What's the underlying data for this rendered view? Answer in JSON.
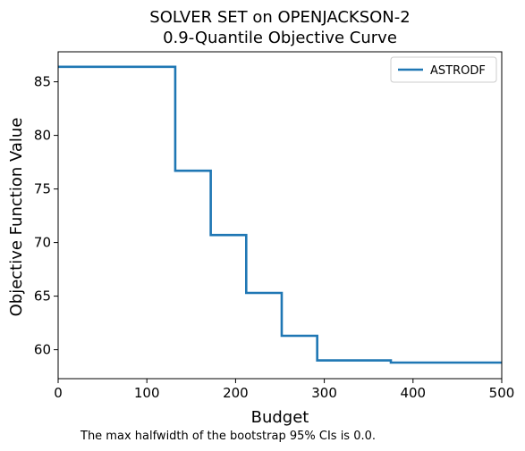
{
  "chart_data": {
    "type": "line",
    "title_line1": "SOLVER SET on OPENJACKSON-2",
    "title_line2": "0.9-Quantile Objective Curve",
    "xlabel": "Budget",
    "ylabel": "Objective Function Value",
    "xlim": [
      0,
      500
    ],
    "ylim": [
      57.3,
      87.8
    ],
    "x_ticks": [
      0,
      100,
      200,
      300,
      400,
      500
    ],
    "y_ticks": [
      60,
      65,
      70,
      75,
      80,
      85
    ],
    "x_tick_labels": [
      "0",
      "100",
      "200",
      "300",
      "400",
      "500"
    ],
    "y_tick_labels": [
      "60",
      "65",
      "70",
      "75",
      "80",
      "85"
    ],
    "grid": false,
    "legend_position": "top-right",
    "series": [
      {
        "name": "ASTRODF",
        "color": "#1f77b4",
        "step": "post",
        "x": [
          0,
          132,
          172,
          212,
          252,
          292,
          375,
          500
        ],
        "y": [
          86.4,
          76.7,
          70.7,
          65.3,
          61.3,
          59.0,
          58.8,
          58.8
        ]
      }
    ],
    "footnote": "The max halfwidth of the bootstrap 95% CIs is 0.0."
  }
}
